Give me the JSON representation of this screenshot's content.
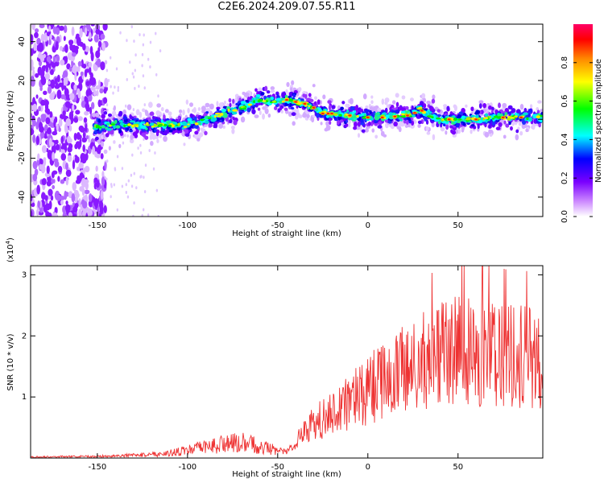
{
  "title": "C2E6.2024.209.07.55.R11",
  "chart_data": [
    {
      "type": "heatmap",
      "xlabel": "Height of straight line (km)",
      "ylabel": "Frequency (Hz)",
      "xlim": [
        -187,
        97
      ],
      "ylim": [
        -50,
        49
      ],
      "xticks": [
        -150,
        -100,
        -50,
        0,
        50
      ],
      "yticks": [
        -40,
        -20,
        0,
        20,
        40
      ],
      "xtick_labels": [
        "-150",
        "-100",
        "-50",
        "0",
        "50"
      ],
      "ytick_labels": [
        "-40",
        "-20",
        "0",
        "20",
        "40"
      ],
      "ridge_frequency": {
        "x": [
          -150,
          -140,
          -130,
          -120,
          -110,
          -100,
          -90,
          -80,
          -70,
          -60,
          -50,
          -45,
          -40,
          -35,
          -30,
          -25,
          -20,
          -10,
          0,
          10,
          20,
          25,
          28,
          32,
          40,
          50,
          60,
          70,
          80,
          90,
          97
        ],
        "y": [
          -4,
          -3,
          -3,
          -3,
          -3,
          -3,
          0,
          3,
          6,
          10,
          9,
          10,
          9,
          8,
          6,
          3,
          3,
          2,
          1,
          1,
          2,
          2,
          6,
          3,
          0,
          0,
          0,
          1,
          1,
          1,
          1
        ]
      },
      "colorbar": {
        "label": "Normalized spectral amplitude",
        "range": [
          0,
          1
        ],
        "ticks": [
          0.0,
          0.2,
          0.4,
          0.6,
          0.8
        ],
        "tick_labels": [
          "0.0",
          "0.2",
          "0.4",
          "0.6",
          "0.8"
        ],
        "colors": [
          "#ffffff",
          "#cc88ff",
          "#7a00ff",
          "#0000ff",
          "#00ffff",
          "#00ff00",
          "#ffff00",
          "#ff8800",
          "#ff0000",
          "#ff0066"
        ]
      }
    },
    {
      "type": "line",
      "xlabel": "Height of straight line (km)",
      "ylabel": "SNR (10 * v/v)",
      "scale_label": "(x10",
      "scale_exponent": "4",
      "scale_close": ")",
      "color": "#ee3333",
      "xlim": [
        -187,
        97
      ],
      "ylim": [
        0,
        3.15
      ],
      "xticks": [
        -150,
        -100,
        -50,
        0,
        50
      ],
      "yticks": [
        1,
        2,
        3
      ],
      "xtick_labels": [
        "-150",
        "-100",
        "-50",
        "0",
        "50"
      ],
      "ytick_labels": [
        "1",
        "2",
        "3"
      ],
      "envelope": {
        "x": [
          -187,
          -150,
          -130,
          -110,
          -100,
          -90,
          -80,
          -70,
          -60,
          -50,
          -45,
          -40,
          -35,
          -30,
          -25,
          -20,
          -10,
          0,
          10,
          20,
          30,
          40,
          50,
          60,
          70,
          80,
          90,
          97
        ],
        "y": [
          0.02,
          0.03,
          0.05,
          0.09,
          0.14,
          0.2,
          0.26,
          0.28,
          0.22,
          0.14,
          0.1,
          0.3,
          0.5,
          0.6,
          0.7,
          0.8,
          1.0,
          1.2,
          1.4,
          1.55,
          1.7,
          1.85,
          1.9,
          1.85,
          1.85,
          1.8,
          1.8,
          1.75
        ]
      }
    }
  ]
}
